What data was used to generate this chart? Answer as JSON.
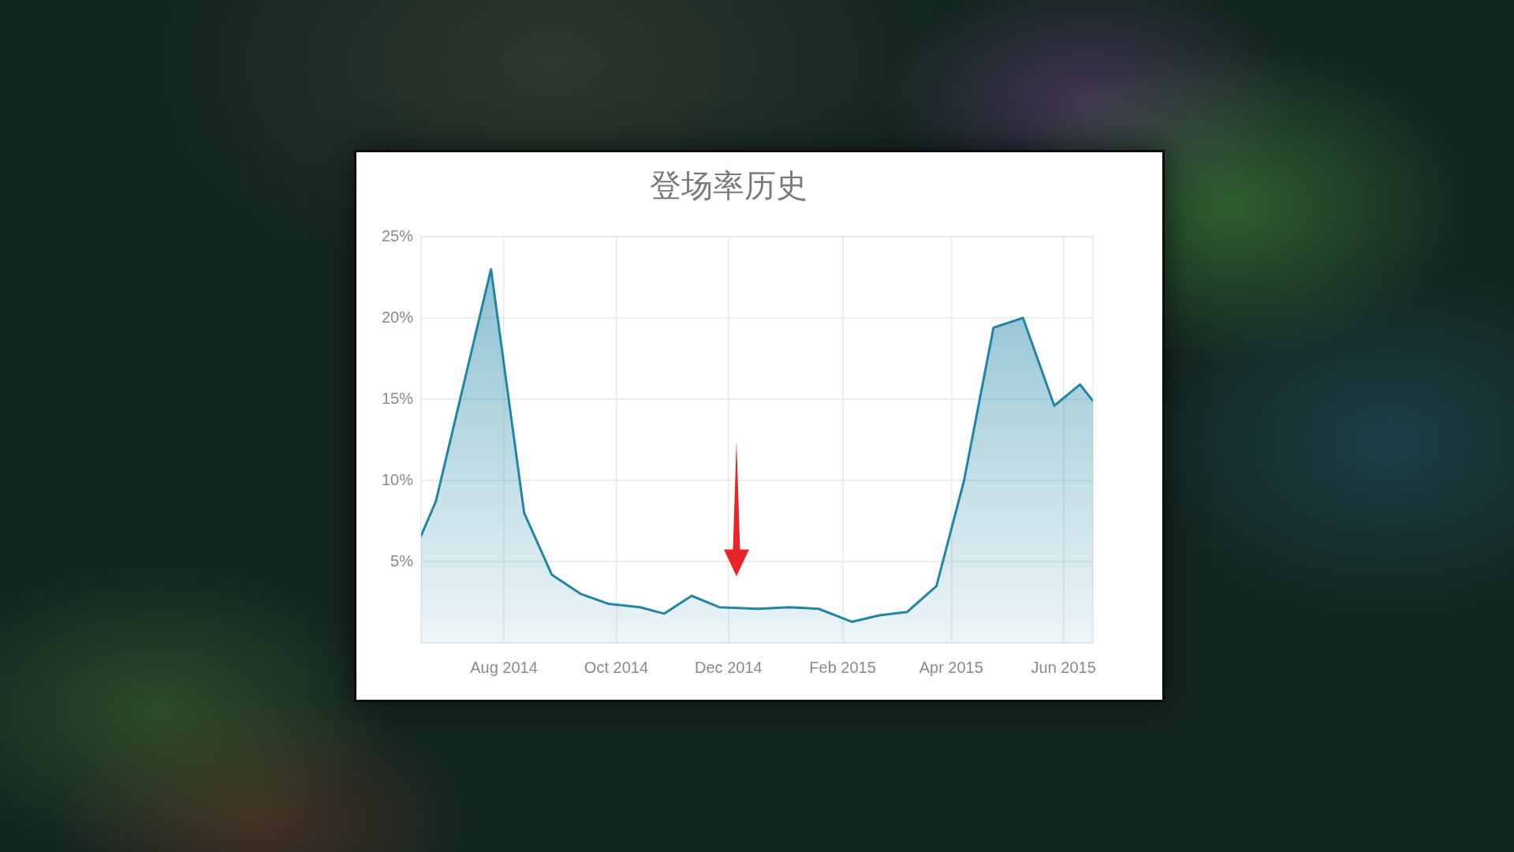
{
  "chart_data": {
    "type": "area",
    "title": "登场率历史",
    "x": [
      "2014-06-17",
      "2014-06-25",
      "2014-07-25",
      "2014-08-12",
      "2014-08-27",
      "2014-09-12",
      "2014-09-27",
      "2014-10-14",
      "2014-10-27",
      "2014-11-11",
      "2014-11-26",
      "2014-12-17",
      "2015-01-03",
      "2015-01-19",
      "2015-02-06",
      "2015-02-21",
      "2015-03-08",
      "2015-03-24",
      "2015-04-08",
      "2015-04-24",
      "2015-05-10",
      "2015-05-27",
      "2015-06-10",
      "2015-06-17"
    ],
    "series": [
      {
        "color": "#2186a5",
        "values": [
          6.6,
          8.7,
          23.0,
          8.0,
          4.2,
          3.0,
          2.4,
          2.2,
          1.8,
          2.9,
          2.2,
          2.1,
          2.2,
          2.1,
          1.3,
          1.7,
          1.9,
          3.5,
          10.0,
          19.4,
          20.0,
          14.6,
          15.9,
          14.9
        ]
      }
    ],
    "xlim": [
      "2014-06-17",
      "2015-06-17"
    ],
    "xticks": [
      {
        "value": "2014-08",
        "label": "Aug 2014"
      },
      {
        "value": "2014-10",
        "label": "Oct 2014"
      },
      {
        "value": "2014-12",
        "label": "Dec 2014"
      },
      {
        "value": "2015-02",
        "label": "Feb 2015"
      },
      {
        "value": "2015-04",
        "label": "Apr 2015"
      },
      {
        "value": "2015-06",
        "label": "Jun 2015"
      }
    ],
    "ylim": [
      0,
      25
    ],
    "yticks": [
      {
        "value": 0,
        "label": null
      },
      {
        "value": 5,
        "label": "5%"
      },
      {
        "value": 10,
        "label": "10%"
      },
      {
        "value": 15,
        "label": "15%"
      },
      {
        "value": 20,
        "label": "20%"
      },
      {
        "value": 25,
        "label": "25%"
      }
    ],
    "grid": true
  }
}
